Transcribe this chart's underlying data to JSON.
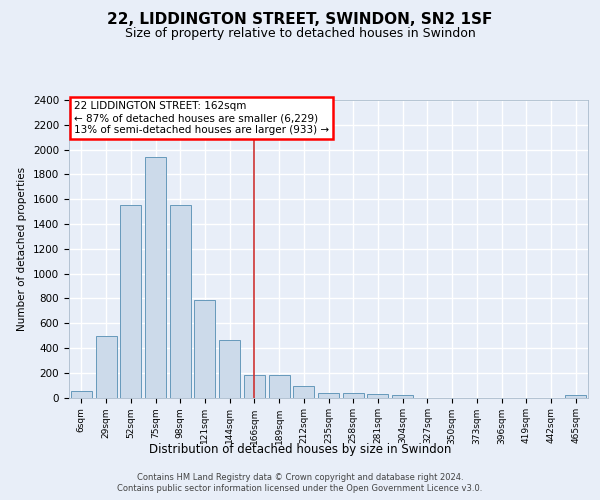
{
  "title": "22, LIDDINGTON STREET, SWINDON, SN2 1SF",
  "subtitle": "Size of property relative to detached houses in Swindon",
  "xlabel": "Distribution of detached houses by size in Swindon",
  "ylabel": "Number of detached properties",
  "categories": [
    "6sqm",
    "29sqm",
    "52sqm",
    "75sqm",
    "98sqm",
    "121sqm",
    "144sqm",
    "166sqm",
    "189sqm",
    "212sqm",
    "235sqm",
    "258sqm",
    "281sqm",
    "304sqm",
    "327sqm",
    "350sqm",
    "373sqm",
    "396sqm",
    "419sqm",
    "442sqm",
    "465sqm"
  ],
  "values": [
    50,
    500,
    1550,
    1940,
    1550,
    790,
    460,
    185,
    185,
    90,
    35,
    35,
    25,
    20,
    0,
    0,
    0,
    0,
    0,
    0,
    20
  ],
  "bar_color": "#ccdaea",
  "bar_edge_color": "#6699bb",
  "vline_x_index": 7.0,
  "vline_color": "#cc3333",
  "annotation_line1": "22 LIDDINGTON STREET: 162sqm",
  "annotation_line2": "← 87% of detached houses are smaller (6,229)",
  "annotation_line3": "13% of semi-detached houses are larger (933) →",
  "footer_line1": "Contains HM Land Registry data © Crown copyright and database right 2024.",
  "footer_line2": "Contains public sector information licensed under the Open Government Licence v3.0.",
  "bg_color": "#e8eef8",
  "plot_bg_color": "#e8eef8",
  "grid_color": "#ffffff",
  "ylim_max": 2400,
  "yticks": [
    0,
    200,
    400,
    600,
    800,
    1000,
    1200,
    1400,
    1600,
    1800,
    2000,
    2200,
    2400
  ]
}
